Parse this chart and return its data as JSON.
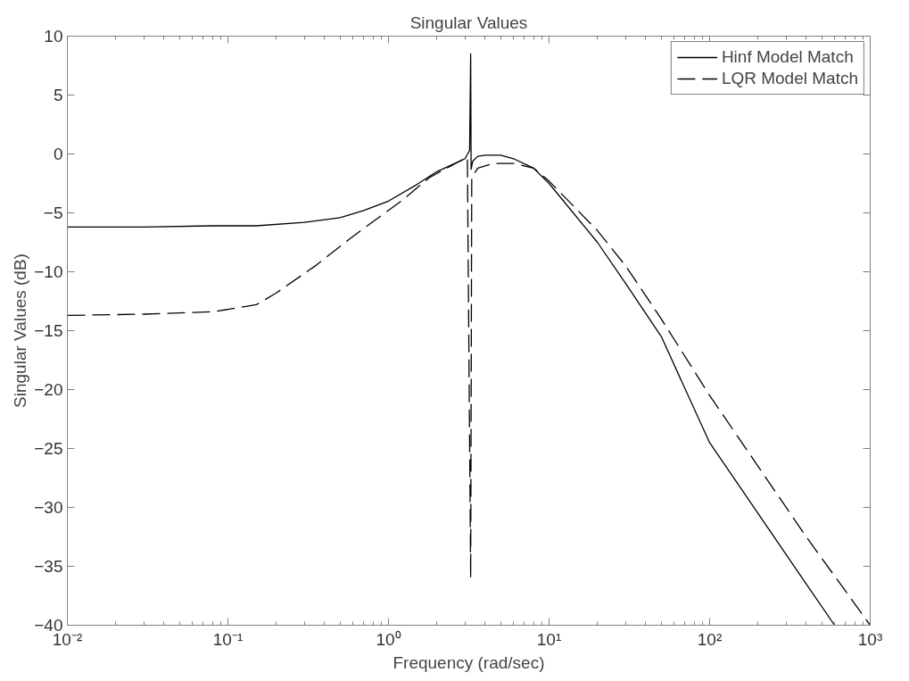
{
  "chart_data": {
    "type": "line",
    "title": "Singular Values",
    "xlabel": "Frequency (rad/sec)",
    "ylabel": "Singular Values (dB)",
    "log": "x",
    "grid": false,
    "legend": "top right",
    "xlim": [
      0.01,
      1000
    ],
    "ylim": [
      -40,
      10
    ],
    "xticks": [
      {
        "value": 0.01,
        "label": "10⁻²"
      },
      {
        "value": 0.1,
        "label": "10⁻¹"
      },
      {
        "value": 1,
        "label": "10⁰"
      },
      {
        "value": 10,
        "label": "10¹"
      },
      {
        "value": 100,
        "label": "10²"
      },
      {
        "value": 1000,
        "label": "10³"
      }
    ],
    "yticks": [
      -40,
      -35,
      -30,
      -25,
      -20,
      -15,
      -10,
      -5,
      0,
      5,
      10
    ],
    "series": [
      {
        "name": "Hinf Model Match",
        "color": "#000000",
        "line_style": "solid",
        "x": [
          0.01,
          0.03,
          0.08,
          0.15,
          0.3,
          0.5,
          0.7,
          1,
          1.5,
          2,
          2.5,
          3.0,
          3.2,
          3.25,
          3.27,
          3.35,
          3.6,
          4,
          5,
          6,
          8,
          10,
          20,
          30,
          50,
          100,
          200,
          400,
          600
        ],
        "values": [
          -6.2,
          -6.2,
          -6.1,
          -6.1,
          -5.8,
          -5.4,
          -4.8,
          -4.0,
          -2.6,
          -1.5,
          -0.9,
          -0.4,
          0.3,
          8.5,
          -1.3,
          -0.6,
          -0.2,
          -0.1,
          -0.1,
          -0.4,
          -1.2,
          -2.5,
          -7.5,
          -11,
          -15.5,
          -24.5,
          -30.5,
          -36.5,
          -40
        ]
      },
      {
        "name": "LQR Model Match",
        "color": "#000000",
        "line_style": "dashed",
        "x": [
          0.01,
          0.03,
          0.08,
          0.15,
          0.2,
          0.35,
          0.6,
          1.2,
          1.8,
          2.7,
          3.1,
          3.25,
          3.3,
          3.6,
          4.5,
          6,
          8,
          10,
          20,
          30,
          50,
          100,
          200,
          400,
          1000
        ],
        "values": [
          -13.7,
          -13.6,
          -13.4,
          -12.8,
          -11.8,
          -9.5,
          -7,
          -4,
          -2,
          -0.7,
          -0.3,
          -36,
          -2,
          -1.2,
          -0.8,
          -0.8,
          -1.2,
          -2.3,
          -6.5,
          -9.5,
          -14,
          -20.5,
          -26.5,
          -32.5,
          -40
        ]
      }
    ]
  }
}
